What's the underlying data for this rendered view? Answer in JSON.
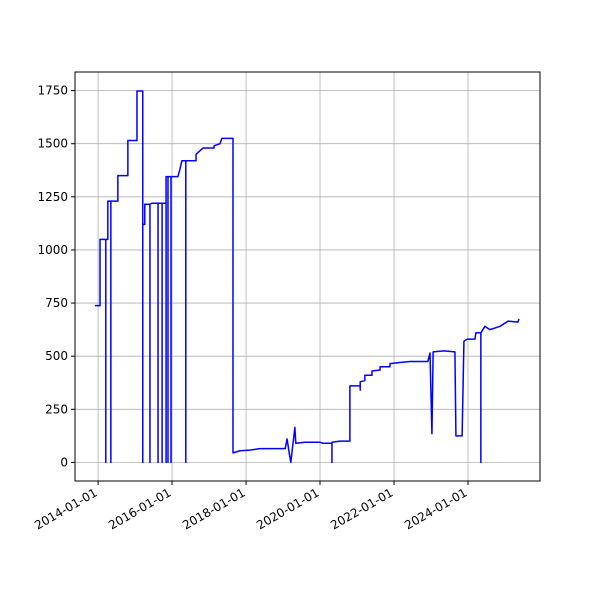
{
  "chart_data": {
    "type": "line",
    "grid": true,
    "color": "#0000ff",
    "x": [
      "2013-12-01",
      "2014-01-20",
      "2014-01-20",
      "2014-03-18",
      "2014-03-18",
      "2014-03-18",
      "2014-04-07",
      "2014-04-07",
      "2014-05-07",
      "2014-05-07",
      "2014-05-07",
      "2014-07-15",
      "2014-07-15",
      "2014-10-22",
      "2014-10-22",
      "2015-01-20",
      "2015-01-20",
      "2015-03-18",
      "2015-03-18",
      "2015-03-18",
      "2015-04-07",
      "2015-04-07",
      "2015-05-28",
      "2015-05-28",
      "2015-05-28",
      "2015-06-16",
      "2015-08-16",
      "2015-08-16",
      "2015-08-16",
      "2015-09-25",
      "2015-09-25",
      "2015-09-25",
      "2015-11-03",
      "2015-11-03",
      "2015-11-03",
      "2015-11-22",
      "2015-11-22",
      "2015-11-22",
      "2015-12-22",
      "2015-12-22",
      "2015-12-22",
      "2016-02-28",
      "2016-03-19",
      "2016-04-07",
      "2016-05-16",
      "2016-05-16",
      "2016-05-16",
      "2016-08-25",
      "2016-08-25",
      "2016-11-03",
      "2017-02-19",
      "2017-02-19",
      "2017-04-19",
      "2017-05-07",
      "2017-08-25",
      "2017-08-25",
      "2017-11-03",
      "2018-02-10",
      "2018-05-16",
      "2019-01-22",
      "2019-02-10",
      "2019-03-01",
      "2019-03-19",
      "2019-04-07",
      "2019-04-28",
      "2019-05-07",
      "2019-08-04",
      "2020-01-01",
      "2020-02-01",
      "2020-04-28",
      "2020-04-28",
      "2020-04-28",
      "2020-07-16",
      "2020-10-22",
      "2020-10-22",
      "2021-02-01",
      "2021-02-01",
      "2021-02-01",
      "2021-03-19",
      "2021-03-19",
      "2021-05-28",
      "2021-05-28",
      "2021-08-16",
      "2021-08-16",
      "2021-11-22",
      "2021-11-22",
      "2022-03-01",
      "2022-06-07",
      "2022-12-01",
      "2022-12-22",
      "2023-01-10",
      "2023-01-22",
      "2023-05-07",
      "2023-08-25",
      "2023-09-04",
      "2023-11-04",
      "2023-11-22",
      "2023-12-22",
      "2024-03-10",
      "2024-03-19",
      "2024-05-07",
      "2024-05-07",
      "2024-05-07",
      "2024-06-16",
      "2024-08-04",
      "2024-11-10",
      "2025-02-01",
      "2025-05-07",
      "2025-05-19"
    ],
    "values": [
      738,
      738,
      1050,
      1050,
      0,
      1050,
      1050,
      1230,
      1230,
      0,
      1230,
      1230,
      1350,
      1350,
      1515,
      1515,
      1748,
      1748,
      0,
      1120,
      1120,
      1215,
      1215,
      0,
      1215,
      1220,
      1220,
      0,
      1220,
      1220,
      0,
      1220,
      1220,
      0,
      1345,
      1345,
      0,
      1345,
      1345,
      0,
      1345,
      1345,
      1380,
      1420,
      1420,
      0,
      1420,
      1420,
      1450,
      1480,
      1480,
      1490,
      1500,
      1525,
      1525,
      45,
      55,
      58,
      65,
      65,
      110,
      50,
      0,
      80,
      165,
      90,
      95,
      95,
      90,
      90,
      0,
      95,
      100,
      100,
      360,
      360,
      340,
      380,
      385,
      410,
      410,
      430,
      435,
      450,
      450,
      465,
      470,
      475,
      475,
      515,
      135,
      520,
      525,
      520,
      125,
      125,
      570,
      580,
      580,
      610,
      610,
      0,
      610,
      640,
      625,
      640,
      665,
      660,
      675
    ],
    "xlim": [
      "2013-05-18",
      "2025-12-12"
    ],
    "xticks": [
      "2014-01-01",
      "2016-01-01",
      "2018-01-01",
      "2020-01-01",
      "2022-01-01",
      "2024-01-01"
    ],
    "ylim": [
      -87.5,
      1837.5
    ],
    "yticks": [
      0,
      250,
      500,
      750,
      1000,
      1250,
      1500,
      1750
    ]
  }
}
